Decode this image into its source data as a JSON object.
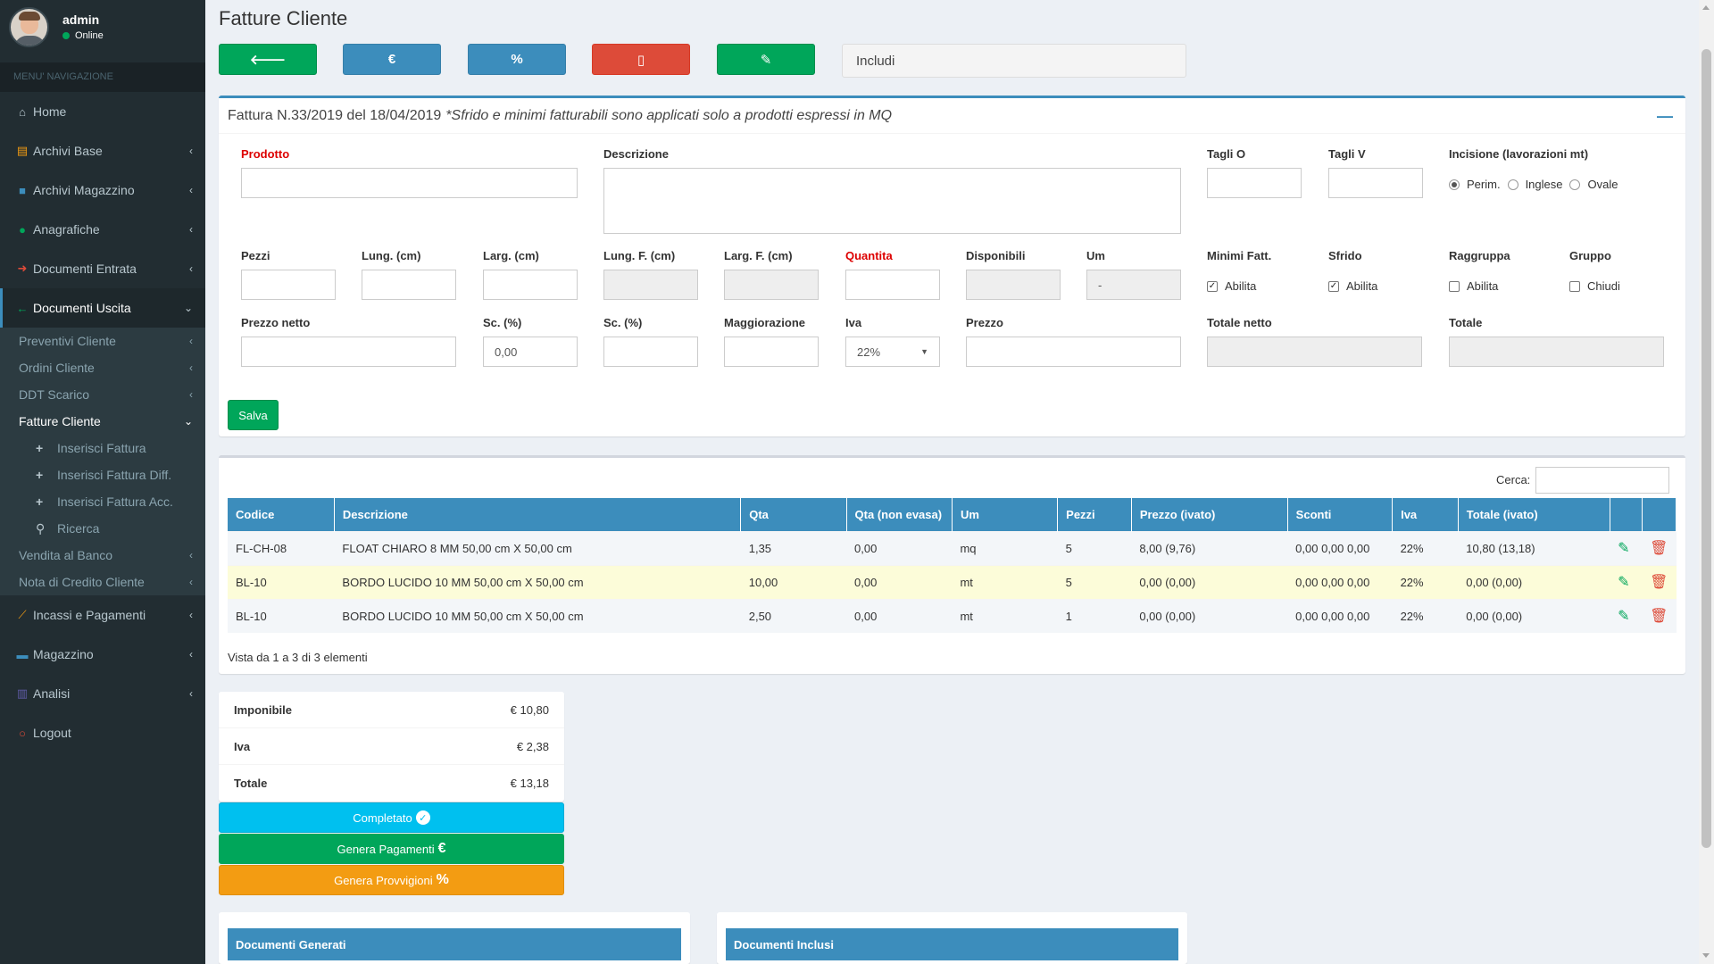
{
  "user": {
    "name": "admin",
    "status": "Online"
  },
  "nav": {
    "header": "MENU' NAVIGAZIONE",
    "items": [
      {
        "label": "Home",
        "icon": "home-icon"
      },
      {
        "label": "Archivi Base",
        "icon": "book-icon"
      },
      {
        "label": "Archivi Magazzino",
        "icon": "table-icon"
      },
      {
        "label": "Anagrafiche",
        "icon": "user-icon"
      },
      {
        "label": "Documenti Entrata",
        "icon": "arrow-right-icon"
      },
      {
        "label": "Documenti Uscita",
        "icon": "arrow-left-icon"
      },
      {
        "label": "Incassi e Pagamenti",
        "icon": "line-chart-icon"
      },
      {
        "label": "Magazzino",
        "icon": "truck-icon"
      },
      {
        "label": "Analisi",
        "icon": "bar-chart-icon"
      },
      {
        "label": "Logout",
        "icon": "power-icon"
      }
    ],
    "sub": [
      "Preventivi Cliente",
      "Ordini Cliente",
      "DDT Scarico",
      "Fatture Cliente",
      "Vendita al Banco",
      "Nota di Credito Cliente"
    ],
    "sub2": [
      "Inserisci Fattura",
      "Inserisci Fattura Diff.",
      "Inserisci Fattura Acc.",
      "Ricerca"
    ]
  },
  "page": {
    "title": "Fatture Cliente",
    "includi": "Includi"
  },
  "form": {
    "header": "Fattura N.33/2019 del 18/04/2019",
    "note": "*Sfrido e minimi fatturabili sono applicati solo a prodotti espressi in MQ",
    "labels": {
      "prodotto": "Prodotto",
      "descrizione": "Descrizione",
      "tagli_o": "Tagli O",
      "tagli_v": "Tagli V",
      "incisione": "Incisione (lavorazioni mt)",
      "pezzi": "Pezzi",
      "lung": "Lung. (cm)",
      "larg": "Larg. (cm)",
      "lung_f": "Lung. F. (cm)",
      "larg_f": "Larg. F. (cm)",
      "quantita": "Quantita",
      "disponibili": "Disponibili",
      "um": "Um",
      "minimi": "Minimi Fatt.",
      "sfrido": "Sfrido",
      "raggruppa": "Raggruppa",
      "gruppo": "Gruppo",
      "prezzo_netto": "Prezzo netto",
      "sc1": "Sc. (%)",
      "sc2": "Sc. (%)",
      "maggiorazione": "Maggiorazione",
      "iva": "Iva",
      "prezzo": "Prezzo",
      "totale_netto": "Totale netto",
      "totale": "Totale"
    },
    "radios": [
      "Perim.",
      "Inglese",
      "Ovale"
    ],
    "checks": {
      "minimi": "Abilita",
      "sfrido": "Abilita",
      "raggruppa": "Abilita",
      "gruppo": "Chiudi"
    },
    "values": {
      "um": "-",
      "sc1": "0,00",
      "iva": "22%"
    },
    "save": "Salva"
  },
  "table": {
    "search_label": "Cerca:",
    "columns": [
      "Codice",
      "Descrizione",
      "Qta",
      "Qta (non evasa)",
      "Um",
      "Pezzi",
      "Prezzo (ivato)",
      "Sconti",
      "Iva",
      "Totale (ivato)",
      "",
      ""
    ],
    "rows": [
      [
        "FL-CH-08",
        "FLOAT CHIARO 8 MM 50,00 cm X 50,00 cm",
        "1,35",
        "0,00",
        "mq",
        "5",
        "8,00 (9,76)",
        "0,00 0,00 0,00",
        "22%",
        "10,80 (13,18)"
      ],
      [
        "BL-10",
        "BORDO LUCIDO 10 MM 50,00 cm X 50,00 cm",
        "10,00",
        "0,00",
        "mt",
        "5",
        "0,00 (0,00)",
        "0,00 0,00 0,00",
        "22%",
        "0,00 (0,00)"
      ],
      [
        "BL-10",
        "BORDO LUCIDO 10 MM 50,00 cm X 50,00 cm",
        "2,50",
        "0,00",
        "mt",
        "1",
        "0,00 (0,00)",
        "0,00 0,00 0,00",
        "22%",
        "0,00 (0,00)"
      ]
    ],
    "info": "Vista da 1 a 3 di 3 elementi"
  },
  "totals": {
    "imponibile_label": "Imponibile",
    "imponibile": "€ 10,80",
    "iva_label": "Iva",
    "iva": "€ 2,38",
    "totale_label": "Totale",
    "totale": "€ 13,18"
  },
  "buttons": {
    "completato": "Completato",
    "pagamenti": "Genera Pagamenti",
    "provvigioni": "Genera Provvigioni"
  },
  "docs": {
    "generati": "Documenti Generati",
    "inclusi": "Documenti Inclusi"
  }
}
